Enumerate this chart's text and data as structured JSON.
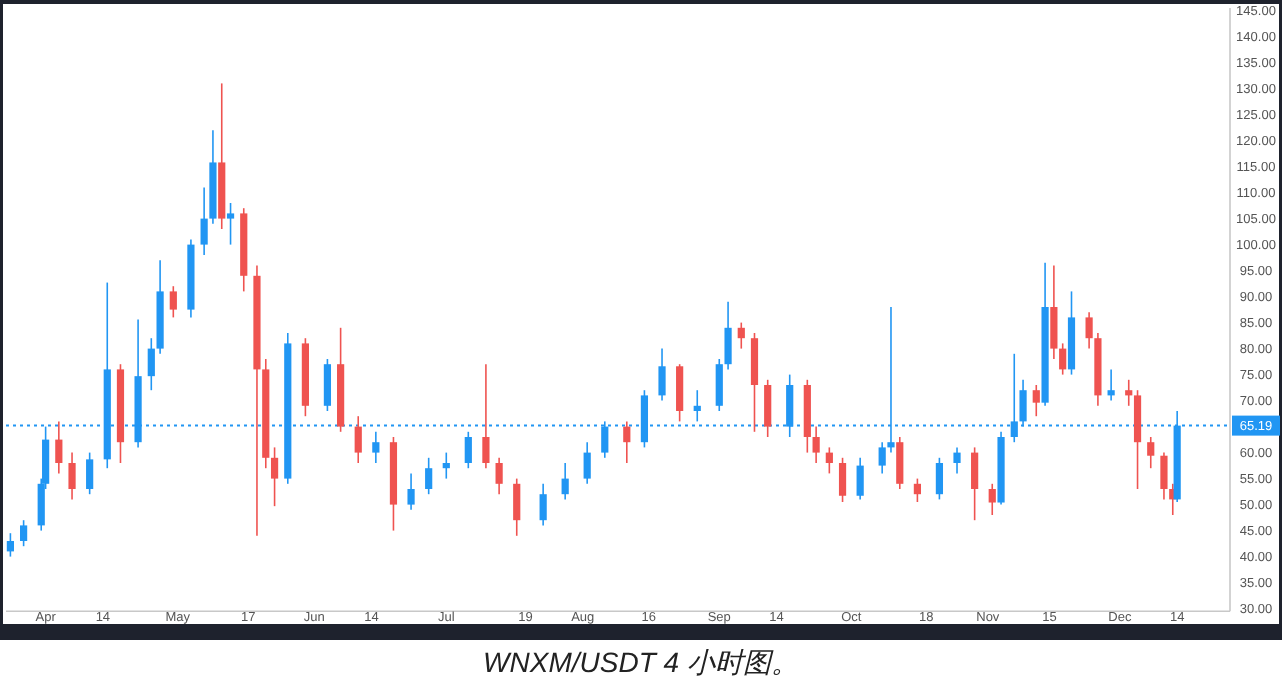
{
  "chart_data": {
    "type": "candlestick",
    "x": [
      "--03-24",
      "--03-27",
      "--03-31",
      "--04-01",
      "--04-04",
      "--04-07",
      "--04-11",
      "--04-15",
      "--04-18",
      "--04-22",
      "--04-25",
      "--04-27",
      "--04-30",
      "--05-04",
      "--05-07",
      "--05-09",
      "--05-11",
      "--05-13",
      "--05-16",
      "--05-19",
      "--05-21",
      "--05-23",
      "--05-26",
      "--05-30",
      "--06-04",
      "--06-07",
      "--06-11",
      "--06-15",
      "--06-19",
      "--06-23",
      "--06-27",
      "--07-01",
      "--07-06",
      "--07-10",
      "--07-13",
      "--07-17",
      "--07-23",
      "--07-28",
      "--08-02",
      "--08-06",
      "--08-11",
      "--08-15",
      "--08-19",
      "--08-23",
      "--08-27",
      "--09-01",
      "--09-03",
      "--09-06",
      "--09-09",
      "--09-12",
      "--09-17",
      "--09-21",
      "--09-23",
      "--09-26",
      "--09-29",
      "--10-03",
      "--10-08",
      "--10-10",
      "--10-12",
      "--10-16",
      "--10-21",
      "--10-25",
      "--10-29",
      "--11-02",
      "--11-04",
      "--11-07",
      "--11-09",
      "--11-12",
      "--11-14",
      "--11-16",
      "--11-18",
      "--11-20",
      "--11-24",
      "--11-26",
      "--11-29",
      "--12-03",
      "--12-05",
      "--12-08",
      "--12-11",
      "--12-13",
      "--12-14"
    ],
    "ohlc": [
      [
        41,
        44.5,
        40,
        43
      ],
      [
        43,
        47,
        42,
        46
      ],
      [
        46,
        55,
        45,
        54
      ],
      [
        54,
        65,
        53,
        62.5
      ],
      [
        62.5,
        66,
        56,
        58
      ],
      [
        58,
        60,
        51,
        53
      ],
      [
        53,
        60,
        52,
        58.7
      ],
      [
        58.7,
        92.7,
        57,
        76
      ],
      [
        76,
        77,
        58,
        62
      ],
      [
        62,
        85.6,
        61,
        74.7
      ],
      [
        74.7,
        82,
        72,
        80
      ],
      [
        80,
        97,
        79,
        91
      ],
      [
        91,
        92,
        86,
        87.5
      ],
      [
        87.5,
        101,
        86,
        100
      ],
      [
        100,
        111,
        98,
        105
      ],
      [
        105,
        122,
        104,
        115.8
      ],
      [
        115.8,
        131,
        103,
        105
      ],
      [
        105,
        108,
        100,
        106
      ],
      [
        106,
        107,
        91,
        94
      ],
      [
        94,
        96,
        44,
        76
      ],
      [
        76,
        78,
        57,
        59
      ],
      [
        59,
        61,
        49.7,
        55
      ],
      [
        55,
        83,
        54,
        81
      ],
      [
        81,
        82,
        67,
        69
      ],
      [
        69,
        78,
        68,
        77
      ],
      [
        77,
        84,
        64,
        65
      ],
      [
        65,
        67,
        58,
        60
      ],
      [
        60,
        64,
        58,
        62
      ],
      [
        62,
        63,
        45,
        50
      ],
      [
        50,
        56,
        49,
        53
      ],
      [
        53,
        59,
        52,
        57
      ],
      [
        57,
        60,
        55,
        58
      ],
      [
        58,
        64,
        57,
        63
      ],
      [
        63,
        77,
        57,
        58
      ],
      [
        58,
        59,
        52,
        54
      ],
      [
        54,
        55,
        44,
        47
      ],
      [
        47,
        54,
        46,
        52
      ],
      [
        52,
        58,
        51,
        55
      ],
      [
        55,
        62,
        54,
        60
      ],
      [
        60,
        66,
        59,
        65
      ],
      [
        65,
        66,
        58,
        62
      ],
      [
        62,
        72,
        61,
        71
      ],
      [
        71,
        80,
        70,
        76.6
      ],
      [
        76.6,
        77,
        66,
        68
      ],
      [
        68,
        72,
        66,
        69
      ],
      [
        69,
        78,
        68,
        77
      ],
      [
        77,
        89,
        76,
        84
      ],
      [
        84,
        85,
        80,
        82
      ],
      [
        82,
        83,
        64,
        73
      ],
      [
        73,
        74,
        63,
        65
      ],
      [
        65,
        75,
        63,
        73
      ],
      [
        73,
        74,
        60,
        63
      ],
      [
        63,
        65,
        58,
        60
      ],
      [
        60,
        61,
        56,
        58
      ],
      [
        58,
        59,
        50.5,
        51.7
      ],
      [
        51.7,
        59,
        51,
        57.5
      ],
      [
        57.5,
        62,
        56,
        61
      ],
      [
        61,
        88,
        60,
        62
      ],
      [
        62,
        63,
        53,
        54
      ],
      [
        54,
        55,
        50.5,
        52
      ],
      [
        52,
        59,
        51,
        58
      ],
      [
        58,
        61,
        56,
        60
      ],
      [
        60,
        61,
        47,
        53
      ],
      [
        53,
        54,
        48,
        50.4
      ],
      [
        50.4,
        64,
        50,
        63
      ],
      [
        63,
        79,
        62,
        66
      ],
      [
        66,
        74,
        65,
        72
      ],
      [
        72,
        73,
        67,
        69.6
      ],
      [
        69.6,
        96.5,
        69,
        88
      ],
      [
        88,
        96,
        78,
        80
      ],
      [
        80,
        81,
        75,
        76
      ],
      [
        76,
        91,
        75,
        86
      ],
      [
        86,
        87,
        80,
        82
      ],
      [
        82,
        83,
        69,
        71
      ],
      [
        71,
        76,
        70,
        72
      ],
      [
        72,
        74,
        69,
        71
      ],
      [
        71,
        72,
        53,
        62
      ],
      [
        62,
        63,
        57,
        59.4
      ],
      [
        59.4,
        60,
        51,
        53
      ],
      [
        53,
        54,
        48,
        51
      ],
      [
        51,
        68,
        50.5,
        65.19
      ]
    ],
    "colors": [
      "#2196f3",
      "#2196f3",
      "#2196f3",
      "#2196f3",
      "#ef5350",
      "#ef5350",
      "#2196f3",
      "#2196f3",
      "#ef5350",
      "#2196f3",
      "#2196f3",
      "#2196f3",
      "#ef5350",
      "#2196f3",
      "#2196f3",
      "#2196f3",
      "#ef5350",
      "#2196f3",
      "#ef5350",
      "#ef5350",
      "#ef5350",
      "#ef5350",
      "#2196f3",
      "#ef5350",
      "#2196f3",
      "#ef5350",
      "#ef5350",
      "#2196f3",
      "#ef5350",
      "#2196f3",
      "#2196f3",
      "#2196f3",
      "#2196f3",
      "#ef5350",
      "#ef5350",
      "#ef5350",
      "#2196f3",
      "#2196f3",
      "#2196f3",
      "#2196f3",
      "#ef5350",
      "#2196f3",
      "#2196f3",
      "#ef5350",
      "#2196f3",
      "#2196f3",
      "#2196f3",
      "#ef5350",
      "#ef5350",
      "#ef5350",
      "#2196f3",
      "#ef5350",
      "#ef5350",
      "#ef5350",
      "#ef5350",
      "#2196f3",
      "#2196f3",
      "#2196f3",
      "#ef5350",
      "#ef5350",
      "#2196f3",
      "#2196f3",
      "#ef5350",
      "#ef5350",
      "#2196f3",
      "#2196f3",
      "#2196f3",
      "#ef5350",
      "#2196f3",
      "#ef5350",
      "#ef5350",
      "#2196f3",
      "#ef5350",
      "#ef5350",
      "#2196f3",
      "#ef5350",
      "#ef5350",
      "#ef5350",
      "#ef5350",
      "#ef5350",
      "#2196f3"
    ],
    "xlim": [
      "--03-23",
      "--12-26"
    ],
    "xticks": [
      {
        "value": "--04-01",
        "label": "Apr"
      },
      {
        "value": "--04-14",
        "label": "14"
      },
      {
        "value": "--05-01",
        "label": "May"
      },
      {
        "value": "--05-17",
        "label": "17"
      },
      {
        "value": "--06-01",
        "label": "Jun"
      },
      {
        "value": "--06-14",
        "label": "14"
      },
      {
        "value": "--07-01",
        "label": "Jul"
      },
      {
        "value": "--07-19",
        "label": "19"
      },
      {
        "value": "--08-01",
        "label": "Aug"
      },
      {
        "value": "--08-16",
        "label": "16"
      },
      {
        "value": "--09-01",
        "label": "Sep"
      },
      {
        "value": "--09-14",
        "label": "14"
      },
      {
        "value": "--10-01",
        "label": "Oct"
      },
      {
        "value": "--10-18",
        "label": "18"
      },
      {
        "value": "--11-01",
        "label": "Nov"
      },
      {
        "value": "--11-15",
        "label": "15"
      },
      {
        "value": "--12-01",
        "label": "Dec"
      },
      {
        "value": "--12-14",
        "label": "14"
      }
    ],
    "ylim": [
      29.5,
      145.5
    ],
    "yticks": [
      {
        "value": 30,
        "label": "30.00"
      },
      {
        "value": 35,
        "label": "35.00"
      },
      {
        "value": 40,
        "label": "40.00"
      },
      {
        "value": 45,
        "label": "45.00"
      },
      {
        "value": 50,
        "label": "50.00"
      },
      {
        "value": 55,
        "label": "55.00"
      },
      {
        "value": 60,
        "label": "60.00"
      },
      {
        "value": 70,
        "label": "70.00"
      },
      {
        "value": 75,
        "label": "75.00"
      },
      {
        "value": 80,
        "label": "80.00"
      },
      {
        "value": 85,
        "label": "85.00"
      },
      {
        "value": 90,
        "label": "90.00"
      },
      {
        "value": 95,
        "label": "95.00"
      },
      {
        "value": 100,
        "label": "100.00"
      },
      {
        "value": 105,
        "label": "105.00"
      },
      {
        "value": 110,
        "label": "110.00"
      },
      {
        "value": 115,
        "label": "115.00"
      },
      {
        "value": 120,
        "label": "120.00"
      },
      {
        "value": 125,
        "label": "125.00"
      },
      {
        "value": 130,
        "label": "130.00"
      },
      {
        "value": 135,
        "label": "135.00"
      },
      {
        "value": 140,
        "label": "140.00"
      },
      {
        "value": 145,
        "label": "145.00"
      }
    ],
    "ref_lines": [
      {
        "axis": "y",
        "value": 65.19,
        "label": "65.19",
        "color": "#2196f3",
        "line_style": "dotted"
      }
    ],
    "annotations": [
      "WNXM/USDT 4 小时图。"
    ]
  }
}
